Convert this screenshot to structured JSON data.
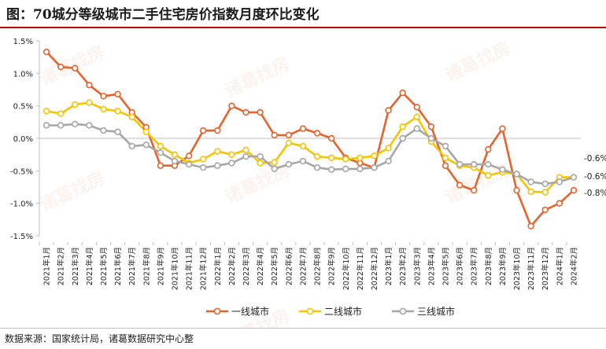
{
  "title": "图：70城分等级城市二手住宅房价指数月度环比变化",
  "source": "数据来源：国家统计局，诸葛数据研究中心整",
  "watermark": "诸葛找房",
  "chart_data": {
    "type": "line",
    "title": "图：70城分等级城市二手住宅房价指数月度环比变化",
    "x": [
      "2021年1月",
      "2021年2月",
      "2021年3月",
      "2021年4月",
      "2021年5月",
      "2021年6月",
      "2021年7月",
      "2021年8月",
      "2021年9月",
      "2021年10月",
      "2021年11月",
      "2021年12月",
      "2022年1月",
      "2022年2月",
      "2022年3月",
      "2022年4月",
      "2022年5月",
      "2022年6月",
      "2022年7月",
      "2022年8月",
      "2022年9月",
      "2022年10月",
      "2022年11月",
      "2022年12月",
      "2023年1月",
      "2023年2月",
      "2023年3月",
      "2023年4月",
      "2023年5月",
      "2023年6月",
      "2023年7月",
      "2023年8月",
      "2023年9月",
      "2023年10月",
      "2023年11月",
      "2023年12月",
      "2024年1月",
      "2024年2月"
    ],
    "x_tick_labels": [
      "2021年1月",
      "2021年2月",
      "2021年3月",
      "2021年4月",
      "2021年5月",
      "2021年6月",
      "2021年7月",
      "2021年8月",
      "2021年9月",
      "2021年10月",
      "2021年11月",
      "2021年12月",
      "2022年1月",
      "2022年2月",
      "2022年3月",
      "2022年4月",
      "2022年5月",
      "2022年6月",
      "2022年7月",
      "2022年8月",
      "2022年9月",
      "2022年10月",
      "2022年11月",
      "2022年12月",
      "2023年1月",
      "2023年2月",
      "2023年3月",
      "2023年4月",
      "2023年5月",
      "2023年6月",
      "2023年7月",
      "2023年8月",
      "2023年9月",
      "2023年10月",
      "2023年11月",
      "2023年12月",
      "2024年1月",
      "2024年2月"
    ],
    "ylim": [
      -1.5,
      1.5
    ],
    "y_ticks": [
      1.5,
      1.0,
      0.5,
      0.0,
      -0.5,
      -1.0,
      -1.5
    ],
    "y_tick_labels": [
      "1.5%",
      "1.0%",
      "0.5%",
      "0.0%",
      "-0.5%",
      "-1.0%",
      "-1.5%"
    ],
    "grid": false,
    "legend_position": "bottom",
    "series": [
      {
        "name": "一线城市",
        "color": "#E8622C",
        "values": [
          1.33,
          1.1,
          1.08,
          0.82,
          0.65,
          0.68,
          0.4,
          0.17,
          -0.42,
          -0.42,
          -0.27,
          0.12,
          0.12,
          0.5,
          0.4,
          0.4,
          0.05,
          0.05,
          0.15,
          0.08,
          0.0,
          -0.3,
          -0.38,
          -0.45,
          0.43,
          0.7,
          0.48,
          0.18,
          -0.42,
          -0.72,
          -0.8,
          -0.17,
          0.15,
          -0.8,
          -1.35,
          -1.1,
          -1.0,
          -0.8
        ]
      },
      {
        "name": "二线城市",
        "color": "#F5C400",
        "values": [
          0.42,
          0.38,
          0.52,
          0.55,
          0.45,
          0.42,
          0.33,
          0.1,
          -0.12,
          -0.25,
          -0.38,
          -0.32,
          -0.2,
          -0.25,
          -0.18,
          -0.38,
          -0.37,
          -0.07,
          -0.12,
          -0.28,
          -0.3,
          -0.32,
          -0.3,
          -0.27,
          -0.15,
          0.18,
          0.33,
          -0.05,
          -0.3,
          -0.42,
          -0.45,
          -0.57,
          -0.52,
          -0.55,
          -0.82,
          -0.83,
          -0.6,
          -0.6
        ]
      },
      {
        "name": "三线城市",
        "color": "#A6A6A6",
        "values": [
          0.2,
          0.2,
          0.22,
          0.2,
          0.12,
          0.1,
          -0.12,
          -0.1,
          -0.22,
          -0.35,
          -0.4,
          -0.45,
          -0.42,
          -0.38,
          -0.28,
          -0.28,
          -0.47,
          -0.4,
          -0.35,
          -0.45,
          -0.48,
          -0.47,
          -0.47,
          -0.45,
          -0.35,
          0.0,
          0.15,
          0.0,
          -0.12,
          -0.4,
          -0.4,
          -0.4,
          -0.48,
          -0.55,
          -0.67,
          -0.7,
          -0.67,
          -0.6
        ]
      }
    ],
    "end_labels": [
      "-0.6%",
      "-0.6%",
      "-0.8%"
    ]
  }
}
